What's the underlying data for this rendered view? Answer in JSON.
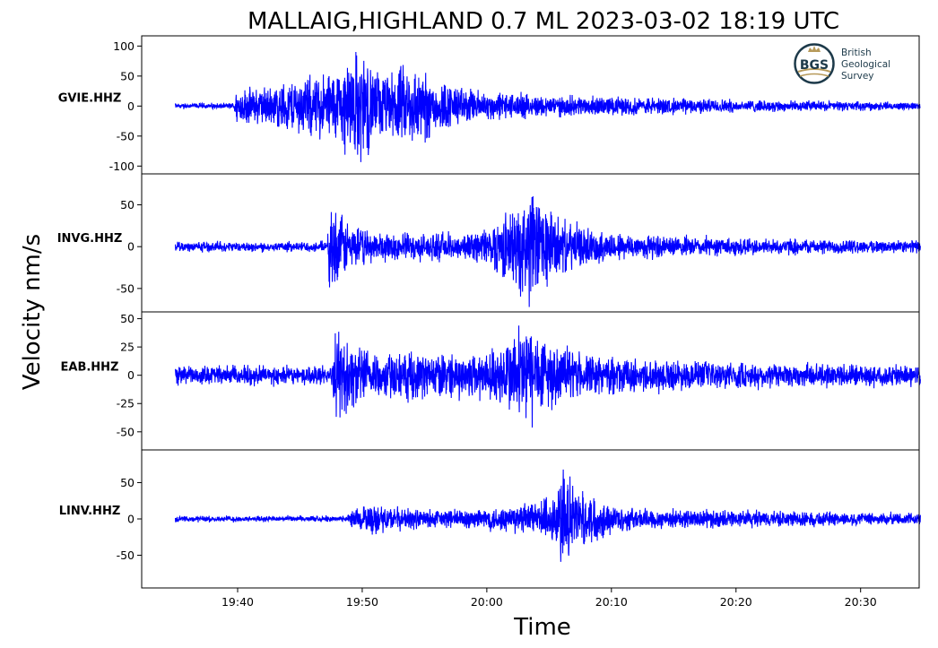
{
  "chart_data": {
    "type": "line",
    "title": "MALLAIG,HIGHLAND 0.7 ML   2023-03-02 18:19 UTC",
    "xlabel": "Time",
    "ylabel": "Velocity nm/s",
    "x_ticks": [
      "19:40",
      "19:50",
      "20:00",
      "20:10",
      "20:20",
      "20:30"
    ],
    "x_tick_minutes": [
      40,
      50,
      60,
      70,
      80,
      90
    ],
    "x_range_minutes": [
      32.3,
      94.7
    ],
    "trace_span_minutes": [
      35.0,
      94.8
    ],
    "series_color": "#0000ff",
    "logo": {
      "abbr": "BGS",
      "lines": [
        "British",
        "Geological",
        "Survey"
      ]
    },
    "panels": [
      {
        "station": "GVIE.HHZ",
        "ylim": [
          -113,
          117
        ],
        "yticks": [
          100,
          50,
          0,
          -50,
          -100
        ],
        "ytick_labels": [
          "100",
          "50",
          "0",
          "-50",
          "-100"
        ],
        "noise": 3,
        "envelope": [
          [
            35.0,
            5
          ],
          [
            39.7,
            5
          ],
          [
            39.8,
            30
          ],
          [
            41,
            35
          ],
          [
            43,
            40
          ],
          [
            45,
            55
          ],
          [
            47,
            65
          ],
          [
            48.2,
            75
          ],
          [
            49,
            100
          ],
          [
            50,
            110
          ],
          [
            51,
            70
          ],
          [
            52,
            60
          ],
          [
            53,
            75
          ],
          [
            54,
            80
          ],
          [
            55,
            70
          ],
          [
            56,
            50
          ],
          [
            57,
            45
          ],
          [
            58,
            35
          ],
          [
            60,
            28
          ],
          [
            62,
            25
          ],
          [
            65,
            20
          ],
          [
            70,
            18
          ],
          [
            75,
            15
          ],
          [
            80,
            12
          ],
          [
            85,
            10
          ],
          [
            90,
            8
          ],
          [
            94.8,
            7
          ]
        ]
      },
      {
        "station": "INVG.HHZ",
        "ylim": [
          -78,
          87
        ],
        "yticks": [
          50,
          0,
          -50
        ],
        "ytick_labels": [
          "50",
          "0",
          "-50"
        ],
        "noise": 4,
        "envelope": [
          [
            35.0,
            6
          ],
          [
            47.2,
            6
          ],
          [
            47.4,
            65
          ],
          [
            48,
            50
          ],
          [
            49,
            32
          ],
          [
            50,
            25
          ],
          [
            52,
            20
          ],
          [
            55,
            18
          ],
          [
            58,
            18
          ],
          [
            59.5,
            22
          ],
          [
            61,
            40
          ],
          [
            62.5,
            55
          ],
          [
            63,
            70
          ],
          [
            63.4,
            85
          ],
          [
            64,
            70
          ],
          [
            65,
            55
          ],
          [
            66,
            38
          ],
          [
            68,
            25
          ],
          [
            70,
            20
          ],
          [
            75,
            14
          ],
          [
            80,
            12
          ],
          [
            85,
            10
          ],
          [
            90,
            9
          ],
          [
            94.8,
            8
          ]
        ]
      },
      {
        "station": "EAB.HHZ",
        "ylim": [
          -66,
          56
        ],
        "yticks": [
          50,
          25,
          0,
          -25,
          -50
        ],
        "ytick_labels": [
          "50",
          "25",
          "0",
          "-25",
          "-50"
        ],
        "noise": 5,
        "envelope": [
          [
            35.0,
            9
          ],
          [
            47.6,
            9
          ],
          [
            47.8,
            45
          ],
          [
            48.5,
            40
          ],
          [
            49.5,
            30
          ],
          [
            51,
            25
          ],
          [
            53,
            22
          ],
          [
            56,
            22
          ],
          [
            60,
            25
          ],
          [
            61.5,
            35
          ],
          [
            62.5,
            50
          ],
          [
            63,
            55
          ],
          [
            64,
            50
          ],
          [
            65,
            35
          ],
          [
            66,
            28
          ],
          [
            68,
            20
          ],
          [
            72,
            16
          ],
          [
            80,
            13
          ],
          [
            90,
            11
          ],
          [
            94.8,
            10
          ]
        ]
      },
      {
        "station": "LINV.HHZ",
        "ylim": [
          -95,
          95
        ],
        "yticks": [
          50,
          0,
          -50
        ],
        "ytick_labels": [
          "50",
          "0",
          "-50"
        ],
        "noise": 3,
        "envelope": [
          [
            35.0,
            4
          ],
          [
            48.8,
            4
          ],
          [
            49,
            15
          ],
          [
            50,
            20
          ],
          [
            51,
            25
          ],
          [
            52,
            20
          ],
          [
            53,
            18
          ],
          [
            55,
            15
          ],
          [
            58,
            15
          ],
          [
            60,
            18
          ],
          [
            62,
            22
          ],
          [
            64,
            28
          ],
          [
            65.5,
            45
          ],
          [
            66,
            90
          ],
          [
            66.5,
            70
          ],
          [
            67,
            50
          ],
          [
            68,
            40
          ],
          [
            69,
            35
          ],
          [
            70,
            22
          ],
          [
            73,
            16
          ],
          [
            78,
            14
          ],
          [
            85,
            12
          ],
          [
            90,
            10
          ],
          [
            94.8,
            9
          ]
        ]
      }
    ]
  }
}
